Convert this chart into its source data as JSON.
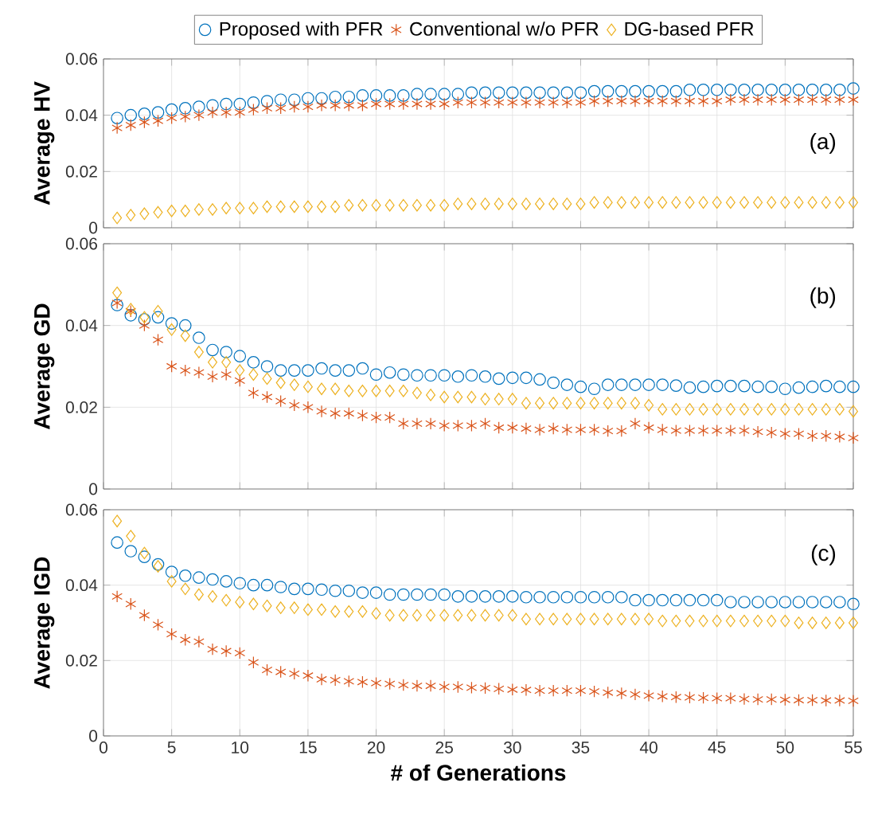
{
  "chart_data": [
    {
      "type": "scatter",
      "ylabel": "Average HV",
      "annotations": [
        "(a)"
      ],
      "legend": "top",
      "grid": true,
      "tick_labels": "y",
      "x": [
        1,
        2,
        3,
        4,
        5,
        6,
        7,
        8,
        9,
        10,
        11,
        12,
        13,
        14,
        15,
        16,
        17,
        18,
        19,
        20,
        21,
        22,
        23,
        24,
        25,
        26,
        27,
        28,
        29,
        30,
        31,
        32,
        33,
        34,
        35,
        36,
        37,
        38,
        39,
        40,
        41,
        42,
        43,
        44,
        45,
        46,
        47,
        48,
        49,
        50,
        51,
        52,
        53,
        54,
        55
      ],
      "xlim": [
        0,
        55
      ],
      "xticks": [
        0,
        5,
        10,
        15,
        20,
        25,
        30,
        35,
        40,
        45,
        50,
        55
      ],
      "ylim": [
        0,
        0.06
      ],
      "yticks": [
        0,
        0.02,
        0.04,
        0.06
      ],
      "series": [
        {
          "name": "Proposed with PFR",
          "color": "#0072bd",
          "marker": "circle",
          "values": [
            0.039,
            0.04,
            0.0405,
            0.041,
            0.042,
            0.0425,
            0.043,
            0.0435,
            0.044,
            0.044,
            0.0445,
            0.045,
            0.0455,
            0.0455,
            0.046,
            0.046,
            0.0465,
            0.0465,
            0.047,
            0.047,
            0.047,
            0.047,
            0.0475,
            0.0475,
            0.0475,
            0.0475,
            0.048,
            0.048,
            0.048,
            0.048,
            0.048,
            0.048,
            0.048,
            0.048,
            0.048,
            0.0485,
            0.0485,
            0.0485,
            0.0485,
            0.0485,
            0.0485,
            0.0485,
            0.049,
            0.049,
            0.049,
            0.049,
            0.049,
            0.049,
            0.049,
            0.049,
            0.049,
            0.049,
            0.049,
            0.049,
            0.0495
          ]
        },
        {
          "name": "Conventional w/o PFR",
          "color": "#d95319",
          "marker": "cross",
          "values": [
            0.0355,
            0.0365,
            0.0375,
            0.038,
            0.039,
            0.0395,
            0.04,
            0.041,
            0.041,
            0.041,
            0.042,
            0.0425,
            0.0425,
            0.043,
            0.043,
            0.0435,
            0.0435,
            0.0435,
            0.0435,
            0.044,
            0.044,
            0.044,
            0.044,
            0.044,
            0.044,
            0.0445,
            0.0445,
            0.0445,
            0.0445,
            0.0445,
            0.0445,
            0.0445,
            0.0445,
            0.0445,
            0.0445,
            0.045,
            0.045,
            0.045,
            0.045,
            0.045,
            0.045,
            0.045,
            0.045,
            0.045,
            0.045,
            0.0455,
            0.0455,
            0.0455,
            0.0455,
            0.0455,
            0.0455,
            0.0455,
            0.0455,
            0.0455,
            0.0455
          ]
        },
        {
          "name": "DG-based PFR",
          "color": "#edb120",
          "marker": "diamond",
          "values": [
            0.0035,
            0.0045,
            0.005,
            0.0055,
            0.006,
            0.006,
            0.0065,
            0.0065,
            0.007,
            0.007,
            0.007,
            0.0075,
            0.0075,
            0.0075,
            0.0075,
            0.0075,
            0.0075,
            0.008,
            0.008,
            0.008,
            0.008,
            0.008,
            0.008,
            0.008,
            0.008,
            0.0085,
            0.0085,
            0.0085,
            0.0085,
            0.0085,
            0.0085,
            0.0085,
            0.0085,
            0.0085,
            0.0085,
            0.009,
            0.009,
            0.009,
            0.009,
            0.009,
            0.009,
            0.009,
            0.009,
            0.009,
            0.009,
            0.009,
            0.009,
            0.009,
            0.009,
            0.009,
            0.009,
            0.009,
            0.009,
            0.009,
            0.009
          ]
        }
      ]
    },
    {
      "type": "scatter",
      "ylabel": "Average GD",
      "annotations": [
        "(b)"
      ],
      "grid": true,
      "tick_labels": "y",
      "x": [
        1,
        2,
        3,
        4,
        5,
        6,
        7,
        8,
        9,
        10,
        11,
        12,
        13,
        14,
        15,
        16,
        17,
        18,
        19,
        20,
        21,
        22,
        23,
        24,
        25,
        26,
        27,
        28,
        29,
        30,
        31,
        32,
        33,
        34,
        35,
        36,
        37,
        38,
        39,
        40,
        41,
        42,
        43,
        44,
        45,
        46,
        47,
        48,
        49,
        50,
        51,
        52,
        53,
        54,
        55
      ],
      "xlim": [
        0,
        55
      ],
      "xticks": [
        0,
        5,
        10,
        15,
        20,
        25,
        30,
        35,
        40,
        45,
        50,
        55
      ],
      "ylim": [
        0,
        0.06
      ],
      "yticks": [
        0,
        0.02,
        0.04,
        0.06
      ],
      "series": [
        {
          "color": "#0072bd",
          "marker": "circle",
          "values": [
            0.045,
            0.0425,
            0.0415,
            0.042,
            0.0405,
            0.04,
            0.037,
            0.034,
            0.0335,
            0.0325,
            0.031,
            0.03,
            0.029,
            0.029,
            0.029,
            0.0295,
            0.029,
            0.029,
            0.0295,
            0.028,
            0.0285,
            0.028,
            0.0278,
            0.0278,
            0.0278,
            0.0275,
            0.0278,
            0.0275,
            0.027,
            0.0272,
            0.0272,
            0.0268,
            0.026,
            0.0255,
            0.025,
            0.0245,
            0.0255,
            0.0255,
            0.0255,
            0.0255,
            0.0255,
            0.0253,
            0.0248,
            0.025,
            0.0252,
            0.0252,
            0.0252,
            0.025,
            0.025,
            0.0245,
            0.0248,
            0.025,
            0.0252,
            0.025,
            0.025
          ]
        },
        {
          "color": "#d95319",
          "marker": "cross",
          "values": [
            0.0455,
            0.0435,
            0.04,
            0.0365,
            0.03,
            0.029,
            0.0285,
            0.0275,
            0.028,
            0.0265,
            0.0235,
            0.0225,
            0.0215,
            0.0205,
            0.02,
            0.019,
            0.0185,
            0.0185,
            0.018,
            0.0175,
            0.0175,
            0.016,
            0.016,
            0.016,
            0.0155,
            0.0155,
            0.0155,
            0.016,
            0.015,
            0.015,
            0.0148,
            0.0145,
            0.0148,
            0.0145,
            0.0145,
            0.0145,
            0.0142,
            0.0142,
            0.016,
            0.015,
            0.0145,
            0.0143,
            0.0143,
            0.0143,
            0.0143,
            0.0143,
            0.0143,
            0.014,
            0.0138,
            0.0135,
            0.0135,
            0.013,
            0.013,
            0.0128,
            0.0125
          ]
        },
        {
          "color": "#edb120",
          "marker": "diamond",
          "values": [
            0.048,
            0.044,
            0.042,
            0.0435,
            0.039,
            0.0375,
            0.0335,
            0.031,
            0.031,
            0.029,
            0.028,
            0.027,
            0.026,
            0.0255,
            0.025,
            0.0245,
            0.0245,
            0.024,
            0.024,
            0.024,
            0.024,
            0.024,
            0.0235,
            0.023,
            0.0225,
            0.0225,
            0.0225,
            0.022,
            0.022,
            0.022,
            0.021,
            0.021,
            0.021,
            0.021,
            0.021,
            0.021,
            0.021,
            0.021,
            0.021,
            0.0205,
            0.0195,
            0.0195,
            0.0195,
            0.0195,
            0.0195,
            0.0195,
            0.0195,
            0.0195,
            0.0195,
            0.0195,
            0.0195,
            0.0195,
            0.0195,
            0.0195,
            0.019
          ]
        }
      ]
    },
    {
      "type": "scatter",
      "ylabel": "Average IGD",
      "xlabel": "# of Generations",
      "annotations": [
        "(c)"
      ],
      "grid": true,
      "x": [
        1,
        2,
        3,
        4,
        5,
        6,
        7,
        8,
        9,
        10,
        11,
        12,
        13,
        14,
        15,
        16,
        17,
        18,
        19,
        20,
        21,
        22,
        23,
        24,
        25,
        26,
        27,
        28,
        29,
        30,
        31,
        32,
        33,
        34,
        35,
        36,
        37,
        38,
        39,
        40,
        41,
        42,
        43,
        44,
        45,
        46,
        47,
        48,
        49,
        50,
        51,
        52,
        53,
        54,
        55
      ],
      "xlim": [
        0,
        55
      ],
      "xticks": [
        0,
        5,
        10,
        15,
        20,
        25,
        30,
        35,
        40,
        45,
        50,
        55
      ],
      "ylim": [
        0,
        0.06
      ],
      "yticks": [
        0,
        0.02,
        0.04,
        0.06
      ],
      "series": [
        {
          "color": "#0072bd",
          "marker": "circle",
          "values": [
            0.0513,
            0.049,
            0.0475,
            0.0455,
            0.0435,
            0.0425,
            0.042,
            0.0415,
            0.041,
            0.0405,
            0.04,
            0.04,
            0.0395,
            0.039,
            0.039,
            0.0388,
            0.0385,
            0.0385,
            0.038,
            0.038,
            0.0375,
            0.0375,
            0.0375,
            0.0375,
            0.0375,
            0.037,
            0.037,
            0.037,
            0.037,
            0.037,
            0.0368,
            0.0368,
            0.0368,
            0.0368,
            0.0368,
            0.0368,
            0.0368,
            0.0368,
            0.036,
            0.036,
            0.036,
            0.036,
            0.036,
            0.036,
            0.036,
            0.0355,
            0.0355,
            0.0355,
            0.0355,
            0.0355,
            0.0355,
            0.0355,
            0.0355,
            0.0355,
            0.035
          ]
        },
        {
          "color": "#d95319",
          "marker": "cross",
          "values": [
            0.037,
            0.035,
            0.032,
            0.0295,
            0.027,
            0.0255,
            0.025,
            0.023,
            0.0225,
            0.022,
            0.0195,
            0.0175,
            0.017,
            0.0165,
            0.016,
            0.015,
            0.0148,
            0.0145,
            0.0143,
            0.014,
            0.0138,
            0.0135,
            0.0133,
            0.0133,
            0.013,
            0.013,
            0.0128,
            0.0127,
            0.0125,
            0.0123,
            0.0122,
            0.012,
            0.012,
            0.012,
            0.012,
            0.0118,
            0.0115,
            0.0113,
            0.011,
            0.0107,
            0.0105,
            0.0103,
            0.0102,
            0.0101,
            0.01,
            0.01,
            0.0098,
            0.0097,
            0.0097,
            0.0096,
            0.0095,
            0.0095,
            0.0094,
            0.0094,
            0.0093
          ]
        },
        {
          "color": "#edb120",
          "marker": "diamond",
          "values": [
            0.057,
            0.053,
            0.0485,
            0.045,
            0.041,
            0.039,
            0.0375,
            0.037,
            0.036,
            0.0355,
            0.035,
            0.0345,
            0.034,
            0.034,
            0.0335,
            0.0335,
            0.033,
            0.033,
            0.033,
            0.0325,
            0.032,
            0.032,
            0.032,
            0.032,
            0.032,
            0.032,
            0.032,
            0.032,
            0.032,
            0.032,
            0.031,
            0.031,
            0.031,
            0.031,
            0.031,
            0.031,
            0.031,
            0.031,
            0.031,
            0.031,
            0.0305,
            0.0305,
            0.0305,
            0.0305,
            0.0305,
            0.0305,
            0.0305,
            0.0305,
            0.0305,
            0.0305,
            0.03,
            0.03,
            0.03,
            0.03,
            0.03
          ]
        }
      ]
    }
  ]
}
